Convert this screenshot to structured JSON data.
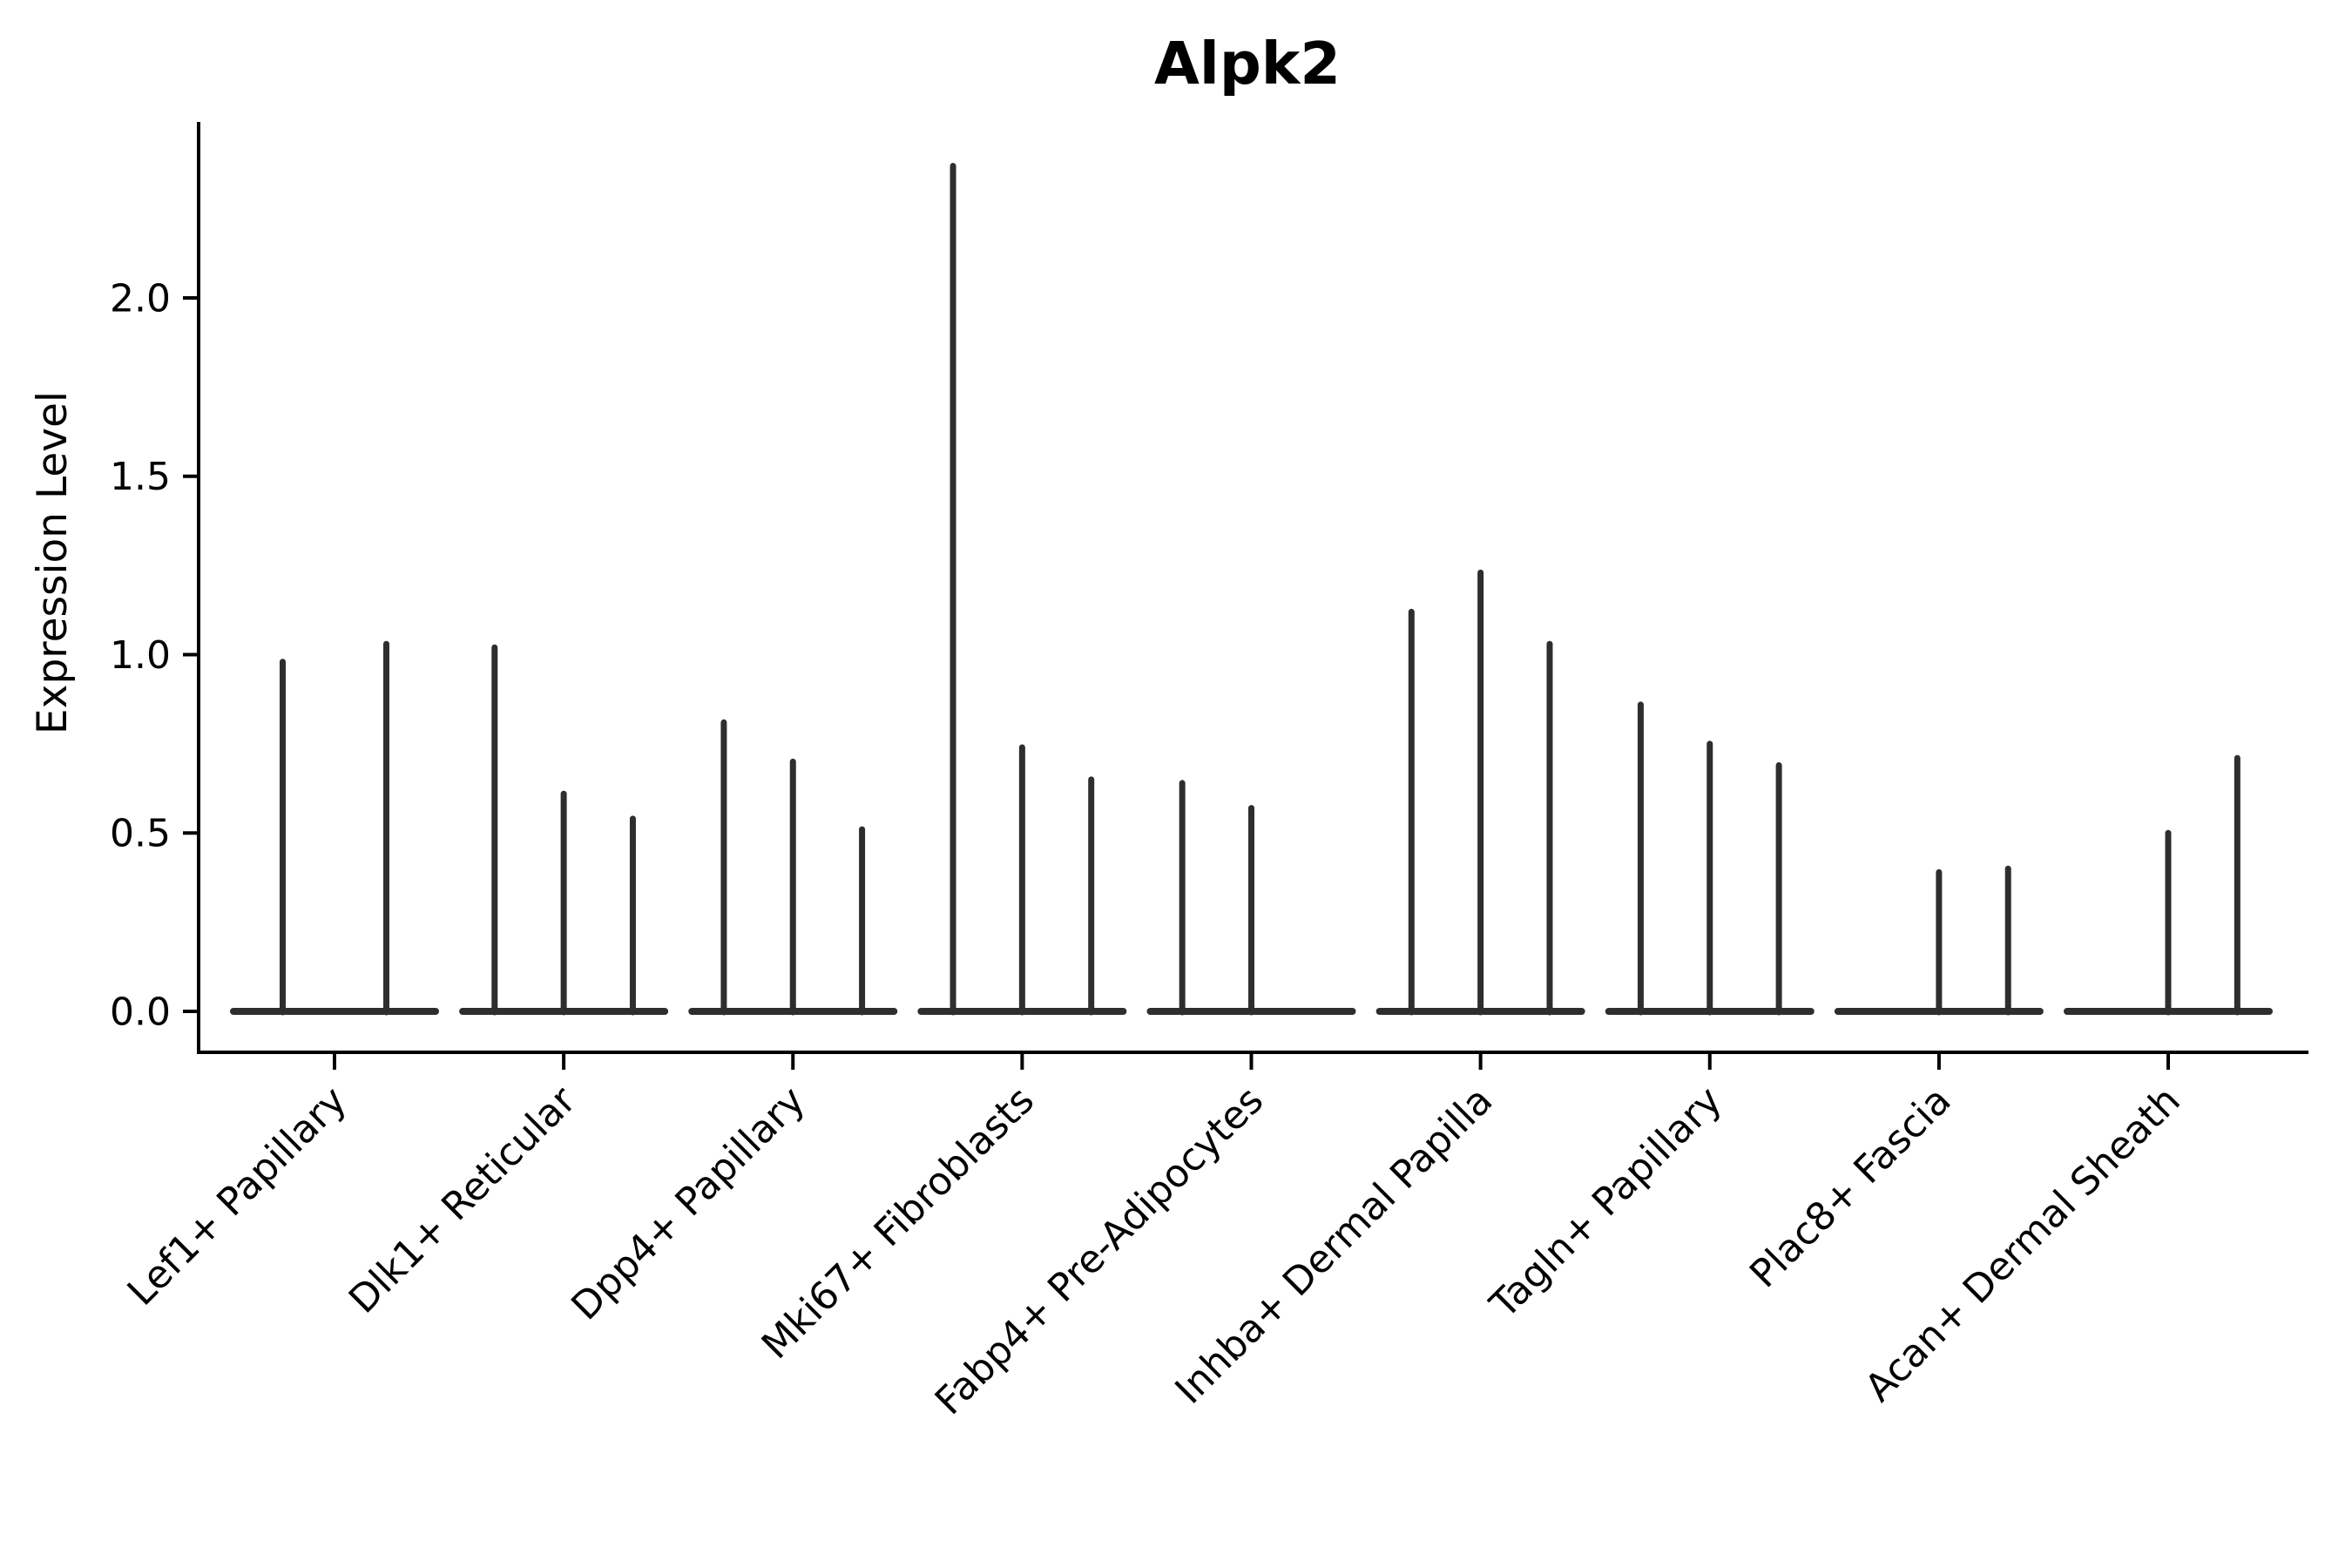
{
  "chart_data": {
    "type": "violin",
    "title": "Alpk2",
    "ylabel": "Expression Level",
    "xlabel": "",
    "yticks": [
      0.0,
      0.5,
      1.0,
      1.5,
      2.0
    ],
    "ylim": [
      0.0,
      2.45
    ],
    "grid": false,
    "legend": "none",
    "violin_style": "sparse-expression spikes: wide flat base at 0 with thin vertical density spikes",
    "categories": [
      {
        "label": "Lef1+ Papillary",
        "spike_heights": [
          0.98,
          1.03
        ]
      },
      {
        "label": "Dlk1+ Reticular",
        "spike_heights": [
          1.02,
          0.61,
          0.54
        ]
      },
      {
        "label": "Dpp4+ Papillary",
        "spike_heights": [
          0.81,
          0.7,
          0.51
        ]
      },
      {
        "label": "Mki67+ Fibroblasts",
        "spike_heights": [
          2.37,
          0.74,
          0.65
        ]
      },
      {
        "label": "Fabp4+ Pre-Adipocytes",
        "spike_heights": [
          0.64,
          0.57,
          0.0
        ]
      },
      {
        "label": "Inhba+ Dermal Papilla",
        "spike_heights": [
          1.12,
          1.23,
          1.03
        ]
      },
      {
        "label": "Tagln+ Papillary",
        "spike_heights": [
          0.86,
          0.75,
          0.69
        ]
      },
      {
        "label": "Plac8+ Fascia",
        "spike_heights": [
          0.0,
          0.39,
          0.4
        ]
      },
      {
        "label": "Acan+ Dermal Sheath",
        "spike_heights": [
          0.0,
          0.5,
          0.71
        ]
      }
    ],
    "colors": {
      "violin": "#2e2e2e",
      "axis": "#000000",
      "text": "#000000",
      "background": "#ffffff"
    }
  }
}
